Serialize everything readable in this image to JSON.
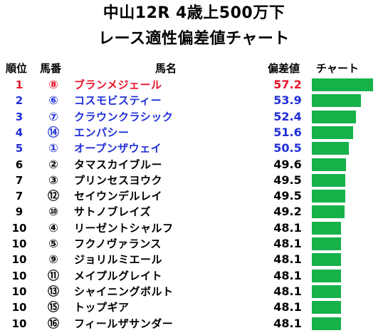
{
  "title": "中山12R 4歳上500万下",
  "subtitle": "レース適性偏差値チャート",
  "headers": {
    "rank": "順位",
    "number": "馬番",
    "name": "馬名",
    "score": "偏差値",
    "chart": "チャート"
  },
  "colors": {
    "top": "#e8132b",
    "highlight": "#1f2fd6",
    "normal": "#000000",
    "bar": "#17b14a"
  },
  "chart_data": {
    "type": "bar",
    "orientation": "horizontal",
    "categories": [
      "ブランメジェール",
      "コスモビスティー",
      "クラウンクラシック",
      "エンパシー",
      "オープンザウェイ",
      "タマスカイブルー",
      "プリンセスヨウク",
      "セイウンデルレイ",
      "サトノブレイズ",
      "リーゼントシャルフ",
      "フクノヴァランス",
      "ジョリルミエール",
      "メイプルグレイト",
      "シャイニングボルト",
      "トップギア",
      "フィールザサンダー"
    ],
    "values": [
      57.2,
      53.9,
      52.4,
      51.6,
      50.5,
      49.6,
      49.5,
      49.5,
      49.2,
      48.1,
      48.1,
      48.1,
      48.1,
      48.1,
      48.1,
      48.1
    ],
    "grid": false,
    "legend": "none"
  },
  "rows": [
    {
      "rank": "1",
      "number": "⑧",
      "name": "ブランメジェール",
      "value": "57.2",
      "style": "red"
    },
    {
      "rank": "2",
      "number": "⑥",
      "name": "コスモビスティー",
      "value": "53.9",
      "style": "blue"
    },
    {
      "rank": "3",
      "number": "⑦",
      "name": "クラウンクラシック",
      "value": "52.4",
      "style": "blue"
    },
    {
      "rank": "4",
      "number": "⑭",
      "name": "エンパシー",
      "value": "51.6",
      "style": "blue"
    },
    {
      "rank": "5",
      "number": "①",
      "name": "オープンザウェイ",
      "value": "50.5",
      "style": "blue"
    },
    {
      "rank": "6",
      "number": "②",
      "name": "タマスカイブルー",
      "value": "49.6",
      "style": "black"
    },
    {
      "rank": "7",
      "number": "③",
      "name": "プリンセスヨウク",
      "value": "49.5",
      "style": "black"
    },
    {
      "rank": "7",
      "number": "⑫",
      "name": "セイウンデルレイ",
      "value": "49.5",
      "style": "black"
    },
    {
      "rank": "9",
      "number": "⑩",
      "name": "サトノブレイズ",
      "value": "49.2",
      "style": "black"
    },
    {
      "rank": "10",
      "number": "④",
      "name": "リーゼントシャルフ",
      "value": "48.1",
      "style": "black"
    },
    {
      "rank": "10",
      "number": "⑤",
      "name": "フクノヴァランス",
      "value": "48.1",
      "style": "black"
    },
    {
      "rank": "10",
      "number": "⑨",
      "name": "ジョリルミエール",
      "value": "48.1",
      "style": "black"
    },
    {
      "rank": "10",
      "number": "⑪",
      "name": "メイプルグレイト",
      "value": "48.1",
      "style": "black"
    },
    {
      "rank": "10",
      "number": "⑬",
      "name": "シャイニングボルト",
      "value": "48.1",
      "style": "black"
    },
    {
      "rank": "10",
      "number": "⑮",
      "name": "トップギア",
      "value": "48.1",
      "style": "black"
    },
    {
      "rank": "10",
      "number": "⑯",
      "name": "フィールザサンダー",
      "value": "48.1",
      "style": "black"
    }
  ]
}
